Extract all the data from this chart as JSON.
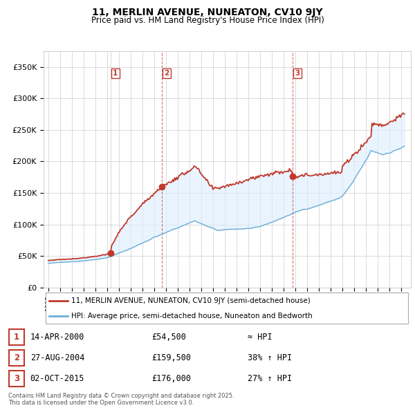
{
  "title": "11, MERLIN AVENUE, NUNEATON, CV10 9JY",
  "subtitle": "Price paid vs. HM Land Registry's House Price Index (HPI)",
  "legend_line1": "11, MERLIN AVENUE, NUNEATON, CV10 9JY (semi-detached house)",
  "legend_line2": "HPI: Average price, semi-detached house, Nuneaton and Bedworth",
  "footnote": "Contains HM Land Registry data © Crown copyright and database right 2025.\nThis data is licensed under the Open Government Licence v3.0.",
  "purchases": [
    {
      "num": 1,
      "date": "14-APR-2000",
      "price": 54500,
      "vs_hpi": "≈ HPI",
      "year": 2000.29
    },
    {
      "num": 2,
      "date": "27-AUG-2004",
      "price": 159500,
      "vs_hpi": "38% ↑ HPI",
      "year": 2004.65
    },
    {
      "num": 3,
      "date": "02-OCT-2015",
      "price": 176000,
      "vs_hpi": "27% ↑ HPI",
      "year": 2015.75
    }
  ],
  "hpi_color": "#6baed6",
  "price_color": "#c0392b",
  "vline1_color": "#888888",
  "vline23_color": "#c0392b",
  "fill_color": "#ddeeff",
  "ylim": [
    0,
    375000
  ],
  "yticks": [
    0,
    50000,
    100000,
    150000,
    200000,
    250000,
    300000,
    350000
  ],
  "xlim_start": 1994.6,
  "xlim_end": 2025.8
}
